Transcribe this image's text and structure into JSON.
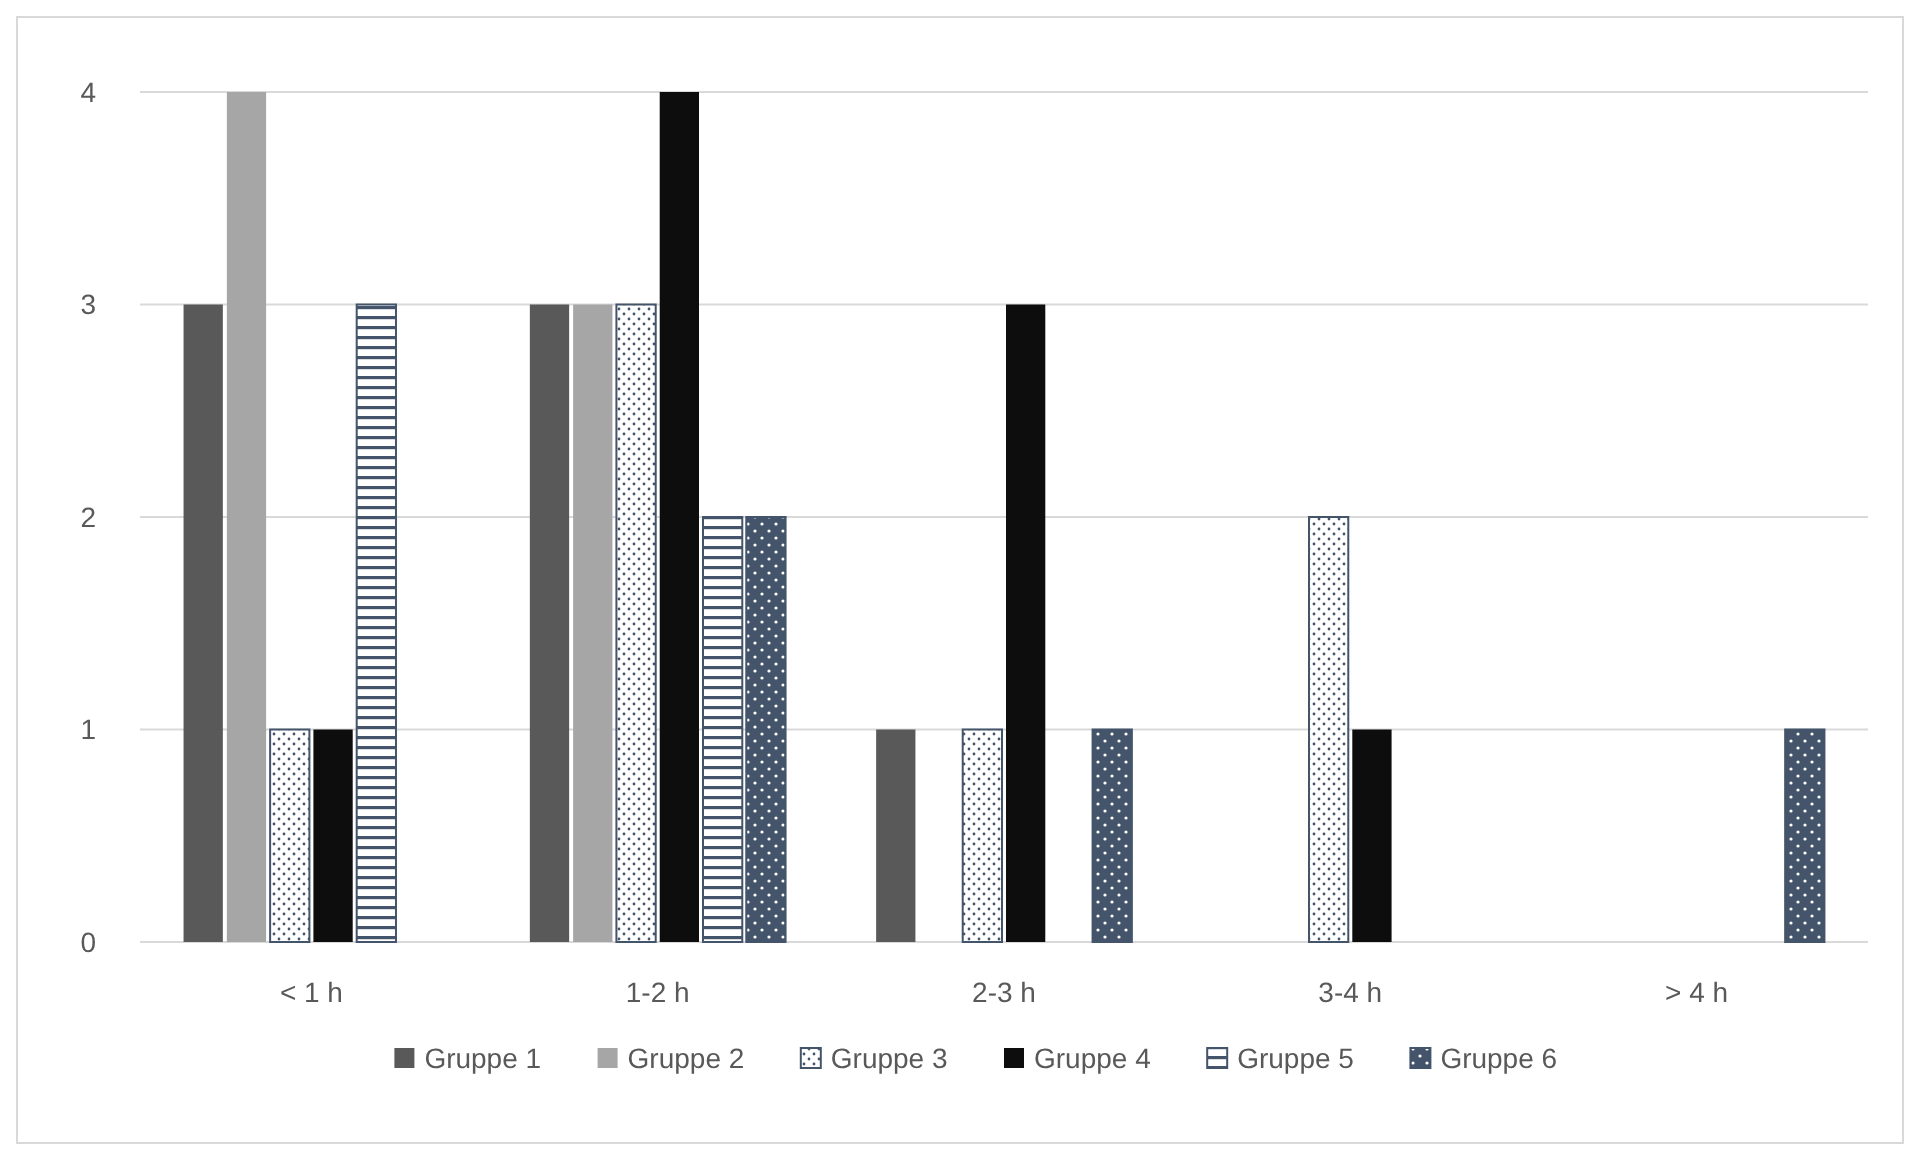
{
  "chart_data": {
    "type": "bar",
    "categories": [
      "< 1 h",
      "1-2 h",
      "2-3 h",
      "3-4 h",
      "> 4 h"
    ],
    "series": [
      {
        "name": "Gruppe 1",
        "color": "#595959",
        "values": [
          3,
          3,
          1,
          0,
          0
        ]
      },
      {
        "name": "Gruppe 2",
        "color": "#a6a6a6",
        "values": [
          4,
          3,
          0,
          0,
          0
        ]
      },
      {
        "name": "Gruppe 3",
        "color": "#44546a",
        "values": [
          1,
          3,
          1,
          2,
          0
        ]
      },
      {
        "name": "Gruppe 4",
        "color": "#0d0d0d",
        "values": [
          1,
          4,
          3,
          1,
          0
        ]
      },
      {
        "name": "Gruppe 5",
        "color": "#44546a",
        "values": [
          3,
          2,
          0,
          0,
          0
        ]
      },
      {
        "name": "Gruppe 6",
        "color": "#44546a",
        "values": [
          0,
          2,
          1,
          0,
          1
        ]
      }
    ],
    "ylim": [
      0,
      4
    ],
    "yticks": [
      0,
      1,
      2,
      3,
      4
    ],
    "grid": "y",
    "legend": "bottom"
  }
}
